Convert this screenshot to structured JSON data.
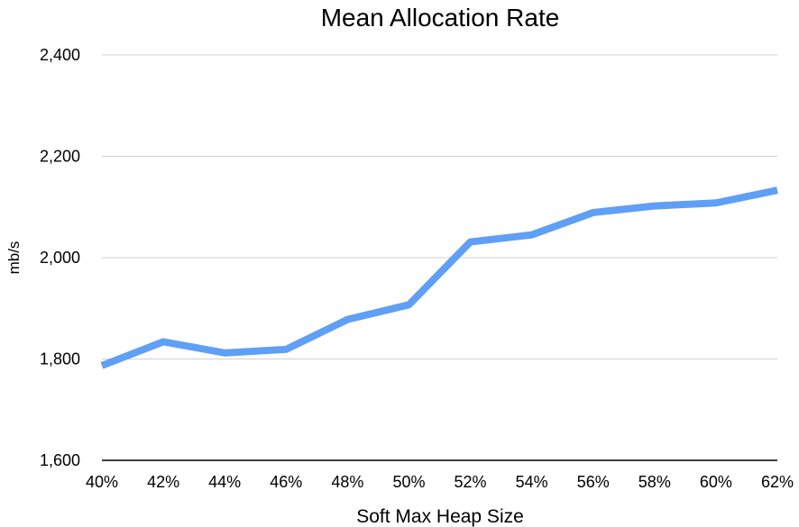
{
  "chart_data": {
    "type": "line",
    "title": "Mean Allocation Rate",
    "xlabel": "Soft Max Heap Size",
    "ylabel": "mb/s",
    "categories": [
      "40%",
      "42%",
      "44%",
      "46%",
      "48%",
      "50%",
      "52%",
      "54%",
      "56%",
      "58%",
      "60%",
      "62%"
    ],
    "series": [
      {
        "values": [
          1787,
          1834,
          1812,
          1819,
          1878,
          1907,
          2031,
          2045,
          2089,
          2102,
          2108,
          2133
        ]
      }
    ],
    "ylim": [
      1600,
      2400
    ],
    "yticks": [
      1600,
      1800,
      2000,
      2200,
      2400
    ],
    "ytick_labels": [
      "1,600",
      "1,800",
      "2,000",
      "2,200",
      "2,400"
    ],
    "grid": true,
    "legend": "none",
    "colors": {
      "line": "#5f9ff5",
      "grid": "#d0d0d0",
      "axis": "#000000"
    }
  }
}
